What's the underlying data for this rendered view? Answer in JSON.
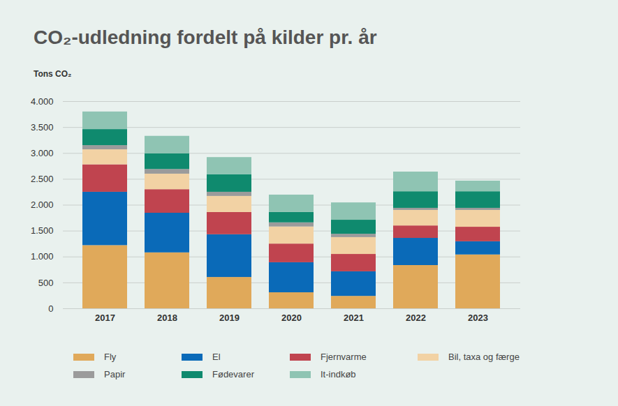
{
  "chart_data": {
    "type": "bar",
    "stacked": true,
    "grid": true,
    "title": "CO₂-udledning fordelt på kilder pr. år",
    "y_label": "Tons CO₂",
    "categories": [
      "2017",
      "2018",
      "2019",
      "2020",
      "2021",
      "2022",
      "2023"
    ],
    "ylim": [
      0,
      4000
    ],
    "yticks": [
      0,
      500,
      {
        "value": 1000,
        "label": "1.000"
      },
      {
        "value": 1500,
        "label": "1.500"
      },
      {
        "value": 2000,
        "label": "2.000"
      },
      {
        "value": 2500,
        "label": "2.500"
      },
      {
        "value": 3000,
        "label": "3.000"
      },
      {
        "value": 3500,
        "label": "3.500"
      },
      {
        "value": 4000,
        "label": "4.000"
      }
    ],
    "legend": "bottom",
    "series": [
      {
        "name": "Fly",
        "color": "#e0a95a",
        "values": [
          1220,
          1080,
          605,
          310,
          240,
          835,
          1040
        ]
      },
      {
        "name": "El",
        "color": "#0a6ab8",
        "values": [
          1030,
          765,
          825,
          580,
          475,
          525,
          255
        ]
      },
      {
        "name": "Fjernvarme",
        "color": "#c0444f",
        "values": [
          530,
          455,
          430,
          360,
          335,
          240,
          280
        ]
      },
      {
        "name": "Bil, taxa og færge",
        "color": "#f2d2a4",
        "values": [
          290,
          300,
          310,
          330,
          325,
          300,
          325
        ]
      },
      {
        "name": "Papir",
        "color": "#9b9b9b",
        "values": [
          80,
          90,
          80,
          80,
          65,
          40,
          40
        ]
      },
      {
        "name": "Fødevarer",
        "color": "#0f8a6e",
        "values": [
          310,
          300,
          340,
          200,
          270,
          320,
          320
        ]
      },
      {
        "name": "It-indkøb",
        "color": "#8fc4b3",
        "values": [
          340,
          340,
          330,
          335,
          335,
          380,
          205
        ]
      }
    ]
  }
}
